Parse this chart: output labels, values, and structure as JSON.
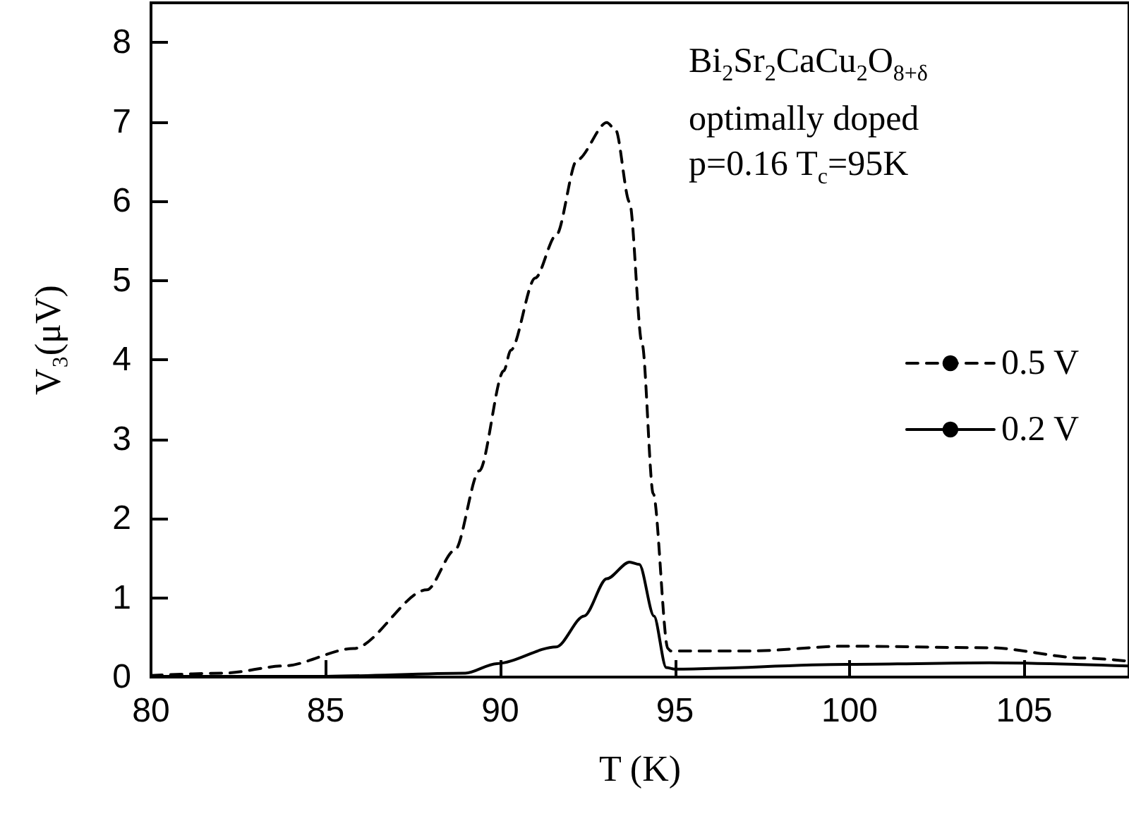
{
  "chart_data": {
    "type": "line",
    "xlabel": "T (K)",
    "ylabel": "V₃(μV)",
    "annotations": [
      "Bi$_{2}$Sr$_{2}$CaCu$_{2}$O$_{8+δ}$",
      "optimally doped",
      "p=0.16 T$_{c}$=95K"
    ],
    "xlim": [
      80,
      108
    ],
    "xticks": [
      80,
      85,
      90,
      95,
      100,
      105
    ],
    "ylim": [
      0,
      8.5
    ],
    "yticks": [
      0,
      1,
      2,
      3,
      4,
      5,
      6,
      7,
      8
    ],
    "grid": false,
    "legend": "right",
    "marker": "none",
    "series": [
      {
        "name": "0.5 V",
        "color": "#000000",
        "line_style": "dashed",
        "x": [
          80,
          82.1,
          83.8,
          85.8,
          87.9,
          88.7,
          89.4,
          90.1,
          90.3,
          91.0,
          91.6,
          92.2,
          93.05,
          93.3,
          93.7,
          94.06,
          94.38,
          94.8,
          94.87,
          97.2,
          99.9,
          104,
          106.7,
          108
        ],
        "values": [
          0.02,
          0.05,
          0.14,
          0.36,
          1.1,
          1.6,
          2.6,
          3.86,
          4.12,
          5.03,
          5.57,
          6.52,
          6.99,
          6.9,
          5.99,
          4.2,
          2.31,
          0.36,
          0.33,
          0.33,
          0.39,
          0.37,
          0.24,
          0.2
        ]
      },
      {
        "name": "0.2 V",
        "color": "#000000",
        "line_style": "solid",
        "x": [
          80,
          85,
          89,
          89.9,
          91.6,
          92.4,
          93.05,
          93.7,
          93.98,
          94.4,
          94.75,
          95,
          99.9,
          104,
          108
        ],
        "values": [
          0.01,
          0.01,
          0.05,
          0.17,
          0.38,
          0.77,
          1.24,
          1.45,
          1.42,
          0.77,
          0.12,
          0.1,
          0.16,
          0.18,
          0.14
        ]
      }
    ]
  }
}
